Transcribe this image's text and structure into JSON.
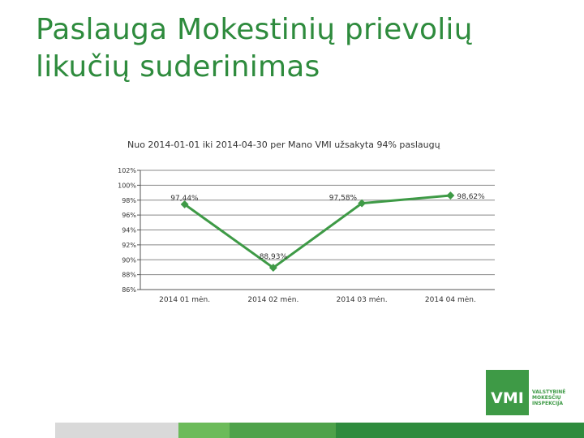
{
  "slide": {
    "title_line1": "Paslauga Mokestinių prievolių",
    "title_line2": "likučių suderinimas"
  },
  "logo": {
    "mark": "VMI",
    "text_line1": "VALSTYBINĖ",
    "text_line2": "MOKESČIŲ",
    "text_line3": "INSPEKCIJA"
  },
  "colors": {
    "title": "#2e8b3d",
    "line": "#3e9a46",
    "bar": [
      "#d9d9d9",
      "#6cbb5a",
      "#4ea24a",
      "#2e8b3d"
    ]
  },
  "chart_data": {
    "type": "line",
    "title": "Nuo 2014-01-01 iki 2014-04-30 per Mano VMI užsakyta 94% paslaugų",
    "categories": [
      "2014 01 mėn.",
      "2014 02 mėn.",
      "2014 03 mėn.",
      "2014 04 mėn."
    ],
    "series": [
      {
        "values": [
          97.44,
          88.93,
          97.58,
          98.62
        ],
        "labels": [
          "97,44%",
          "88,93%",
          "97,58%",
          "98,62%"
        ]
      }
    ],
    "y_ticks": [
      "102%",
      "100%",
      "98%",
      "96%",
      "94%",
      "92%",
      "90%",
      "88%",
      "86%"
    ],
    "ylim": [
      86,
      102
    ],
    "grid": true,
    "legend": "none"
  }
}
